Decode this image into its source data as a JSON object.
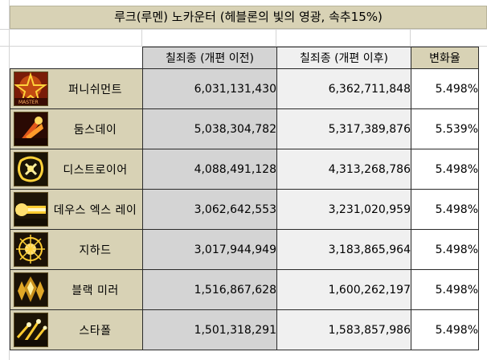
{
  "title": "루크(루멘) 노카운터 (헤블론의 빛의 영광, 속추15%)",
  "columns": {
    "before": "칠죄종 (개편 이전)",
    "after": "칠죄종 (개편 이후)",
    "change": "변화율"
  },
  "rows": [
    {
      "name": "퍼니쉬먼트",
      "icon": "punishment-icon",
      "before": "6,031,131,430",
      "after": "6,362,711,848",
      "change": "5.498%"
    },
    {
      "name": "둠스데이",
      "icon": "doomsday-icon",
      "before": "5,038,304,782",
      "after": "5,317,389,876",
      "change": "5.539%"
    },
    {
      "name": "디스트로이어",
      "icon": "destroyer-icon",
      "before": "4,088,491,128",
      "after": "4,313,268,786",
      "change": "5.498%"
    },
    {
      "name": "데우스 엑스 레이",
      "icon": "deus-ex-ray-icon",
      "before": "3,062,642,553",
      "after": "3,231,020,959",
      "change": "5.498%"
    },
    {
      "name": "지하드",
      "icon": "jihad-icon",
      "before": "3,017,944,949",
      "after": "3,183,865,964",
      "change": "5.498%"
    },
    {
      "name": "블랙 미러",
      "icon": "black-mirror-icon",
      "before": "1,516,867,628",
      "after": "1,600,262,197",
      "change": "5.498%"
    },
    {
      "name": "스타폴",
      "icon": "starfall-icon",
      "before": "1,501,318,291",
      "after": "1,583,857,986",
      "change": "5.498%"
    }
  ]
}
